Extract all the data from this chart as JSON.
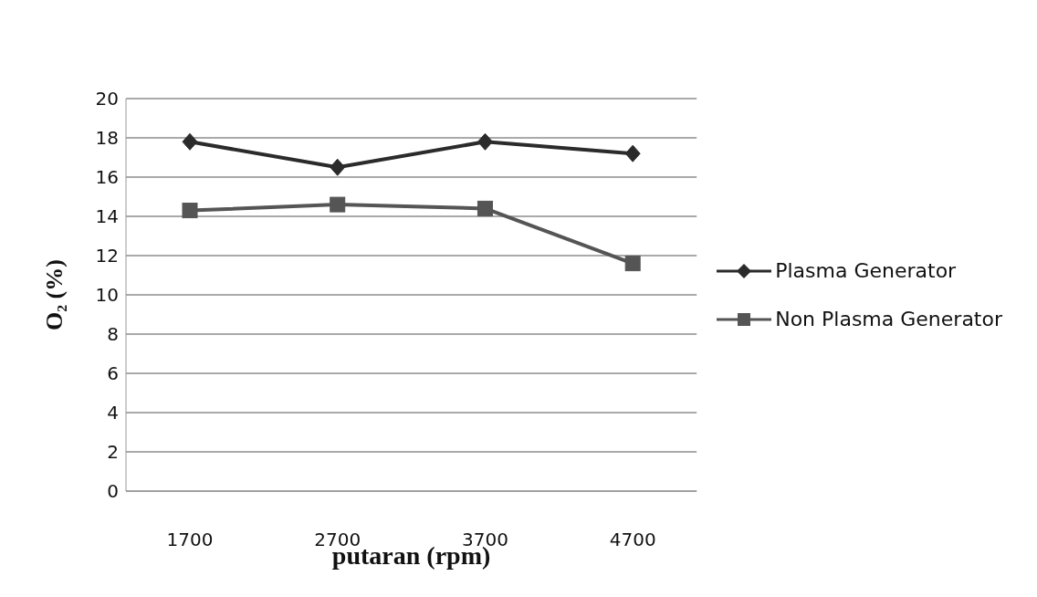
{
  "chart_data": {
    "type": "line",
    "xlabel": "putaran (rpm)",
    "ylabel": "O₂ (%)",
    "categories": [
      "1700",
      "2700",
      "3700",
      "4700"
    ],
    "series": [
      {
        "name": "Plasma Generator",
        "color": "#2b2b2b",
        "marker": "diamond",
        "values": [
          17.8,
          16.5,
          17.8,
          17.2
        ]
      },
      {
        "name": "Non Plasma Generator",
        "color": "#555555",
        "marker": "square",
        "values": [
          14.3,
          14.6,
          14.4,
          11.6
        ]
      }
    ],
    "ylim": [
      0,
      20
    ],
    "yticks": [
      0,
      2,
      4,
      6,
      8,
      10,
      12,
      14,
      16,
      18,
      20
    ],
    "grid": "y",
    "legend": "right"
  }
}
